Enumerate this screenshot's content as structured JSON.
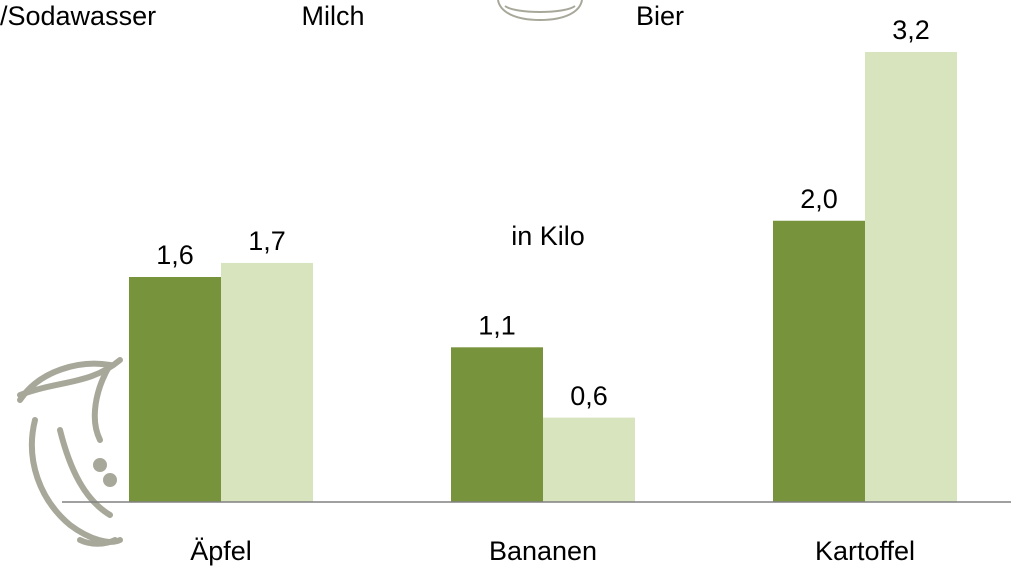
{
  "chart_data": {
    "type": "bar",
    "annotations": [
      "/Sodawasser",
      "Milch",
      "Bier"
    ],
    "subtitle": "in Kilo",
    "categories": [
      "Äpfel",
      "Bananen",
      "Kartoffel"
    ],
    "series": [
      {
        "color": "#77933c",
        "values": [
          1.6,
          1.1,
          2.0
        ],
        "value_labels": [
          "1,6",
          "1,1",
          "2,0"
        ]
      },
      {
        "color": "#d7e4bd",
        "values": [
          1.7,
          0.6,
          3.2
        ],
        "value_labels": [
          "1,7",
          "0,6",
          "3,2"
        ]
      }
    ],
    "ylim": [
      0,
      3.2
    ]
  }
}
